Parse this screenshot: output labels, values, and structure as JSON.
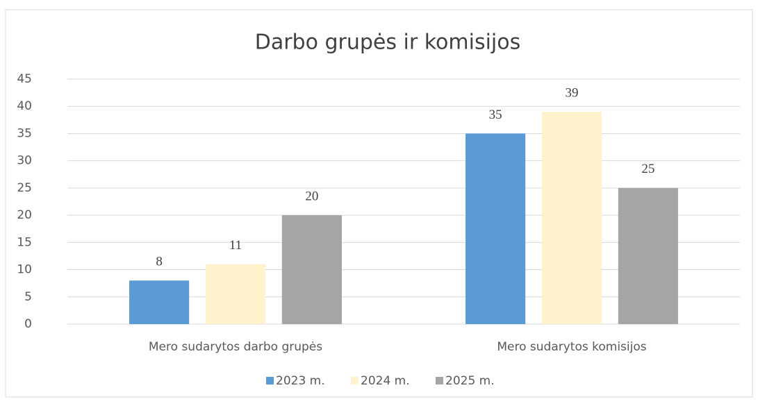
{
  "chart_data": {
    "type": "bar",
    "title": "Darbo grupės ir komisijos",
    "categories": [
      "Mero sudarytos darbo grupės",
      "Mero sudarytos komisijos"
    ],
    "series": [
      {
        "name": "2023 m.",
        "color": "#5b9bd5",
        "values": [
          8,
          35
        ]
      },
      {
        "name": "2024 m.",
        "color": "#fff2cc",
        "values": [
          11,
          39
        ]
      },
      {
        "name": "2025 m.",
        "color": "#a5a5a5",
        "values": [
          20,
          25
        ]
      }
    ],
    "ylim": [
      0,
      45
    ],
    "yticks": [
      0,
      5,
      10,
      15,
      20,
      25,
      30,
      35,
      40,
      45
    ],
    "grid": true,
    "legend": "bottom"
  }
}
